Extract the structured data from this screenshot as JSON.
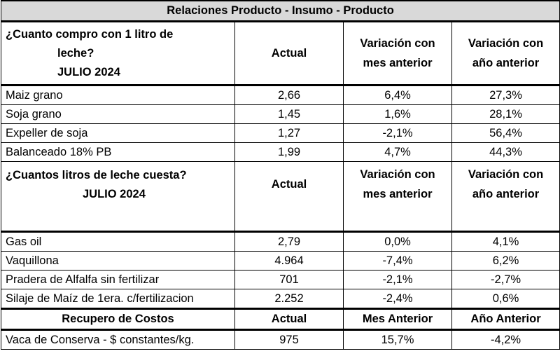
{
  "title": "Relaciones Producto - Insumo - Producto",
  "section1": {
    "question_line1": "¿Cuanto compro con 1 litro de",
    "question_line2": "leche?",
    "period": "JULIO 2024",
    "col_actual": "Actual",
    "col_mes": "Variación con mes anterior",
    "col_anio": "Variación con año anterior",
    "rows": [
      {
        "item": "Maiz grano",
        "actual": "2,66",
        "mes": "6,4%",
        "anio": "27,3%"
      },
      {
        "item": "Soja grano",
        "actual": "1,45",
        "mes": "1,6%",
        "anio": "28,1%"
      },
      {
        "item": "Expeller de soja",
        "actual": "1,27",
        "mes": "-2,1%",
        "anio": "56,4%"
      },
      {
        "item": "Balanceado 18% PB",
        "actual": "1,99",
        "mes": "4,7%",
        "anio": "44,3%"
      }
    ]
  },
  "section2": {
    "question": "¿Cuantos litros de leche cuesta?",
    "period": "JULIO 2024",
    "col_actual": "Actual",
    "col_mes": "Variación con mes anterior",
    "col_anio": "Variación con año anterior",
    "rows": [
      {
        "item": "Gas oil",
        "actual": "2,79",
        "mes": "0,0%",
        "anio": "4,1%"
      },
      {
        "item": "Vaquillona",
        "actual": "4.964",
        "mes": "-7,4%",
        "anio": "6,2%"
      },
      {
        "item": "Pradera de Alfalfa sin fertilizar",
        "actual": "701",
        "mes": "-2,1%",
        "anio": "-2,7%"
      },
      {
        "item": "Silaje de Maíz de 1era. c/fertilizacion",
        "actual": "2.252",
        "mes": "-2,4%",
        "anio": "0,6%"
      }
    ]
  },
  "section3": {
    "header": "Recupero de Costos",
    "col_actual": "Actual",
    "col_mes": "Mes Anterior",
    "col_anio": "Año Anterior",
    "rows": [
      {
        "item": "Vaca de Conserva - $ constantes/kg.",
        "actual": "975",
        "mes": "15,7%",
        "anio": "-4,2%"
      }
    ]
  }
}
